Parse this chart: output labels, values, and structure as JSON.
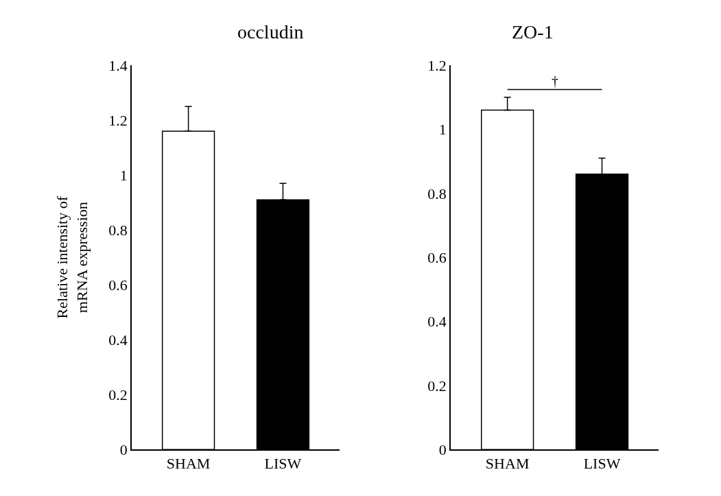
{
  "chart_data": [
    {
      "type": "bar",
      "title": "occludin",
      "ylabel": "Relative intensity of\nmRNA expression",
      "categories": [
        "SHAM",
        "LISW"
      ],
      "values": [
        1.16,
        0.91
      ],
      "colors": [
        "#ffffff",
        "#000000"
      ],
      "errors": [
        [
          1.16,
          1.25
        ],
        [
          0.91,
          0.97
        ]
      ],
      "ylim": [
        0,
        1.4
      ],
      "yticks": [
        0,
        0.2,
        0.4,
        0.6,
        0.8,
        1,
        1.2,
        1.4
      ]
    },
    {
      "type": "bar",
      "title": "ZO-1",
      "categories": [
        "SHAM",
        "LISW"
      ],
      "values": [
        1.06,
        0.86
      ],
      "colors": [
        "#ffffff",
        "#000000"
      ],
      "errors": [
        [
          1.06,
          1.1
        ],
        [
          0.86,
          0.91
        ]
      ],
      "ylim": [
        0,
        1.2
      ],
      "yticks": [
        0,
        0.2,
        0.4,
        0.6,
        0.8,
        1,
        1.2
      ],
      "annotations": [
        "†"
      ]
    }
  ]
}
